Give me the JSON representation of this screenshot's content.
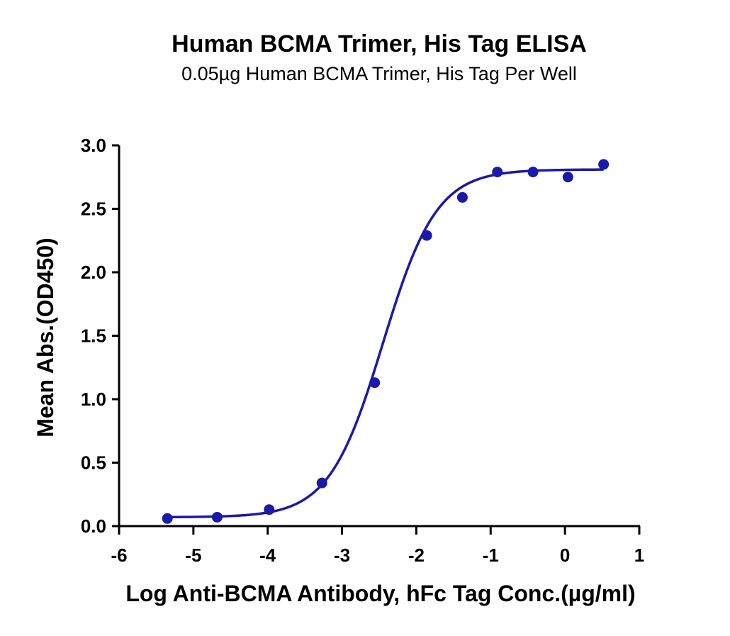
{
  "chart_data": {
    "type": "scatter",
    "title": "Human BCMA Trimer, His Tag ELISA",
    "subtitle": "0.05µg Human BCMA Trimer, His Tag Per Well",
    "xlabel": "Log Anti-BCMA Antibody, hFc Tag Conc.(µg/ml)",
    "ylabel": "Mean Abs.(OD450)",
    "xlim": [
      -6,
      1
    ],
    "ylim": [
      0,
      3
    ],
    "x_ticks": [
      "-6",
      "-5",
      "-4",
      "-3",
      "-2",
      "-1",
      "0",
      "1"
    ],
    "y_ticks": [
      "0.0",
      "0.5",
      "1.0",
      "1.5",
      "2.0",
      "2.5",
      "3.0"
    ],
    "grid": false,
    "legend": "none",
    "series": [
      {
        "points": [
          {
            "x": -5.35,
            "y": 0.06
          },
          {
            "x": -4.68,
            "y": 0.07
          },
          {
            "x": -3.98,
            "y": 0.13
          },
          {
            "x": -3.27,
            "y": 0.34
          },
          {
            "x": -2.56,
            "y": 1.13
          },
          {
            "x": -1.86,
            "y": 2.29
          },
          {
            "x": -1.38,
            "y": 2.59
          },
          {
            "x": -0.91,
            "y": 2.79
          },
          {
            "x": -0.43,
            "y": 2.79
          },
          {
            "x": 0.04,
            "y": 2.75
          },
          {
            "x": 0.52,
            "y": 2.85
          }
        ],
        "fit": {
          "model": "4PL",
          "bottom": 0.07,
          "top": 2.81,
          "log_ec50": -2.45,
          "hill_slope": 1.2
        }
      }
    ],
    "colors": {
      "series": "#1a1aa8",
      "axis": "#000000",
      "text": "#000000"
    }
  }
}
